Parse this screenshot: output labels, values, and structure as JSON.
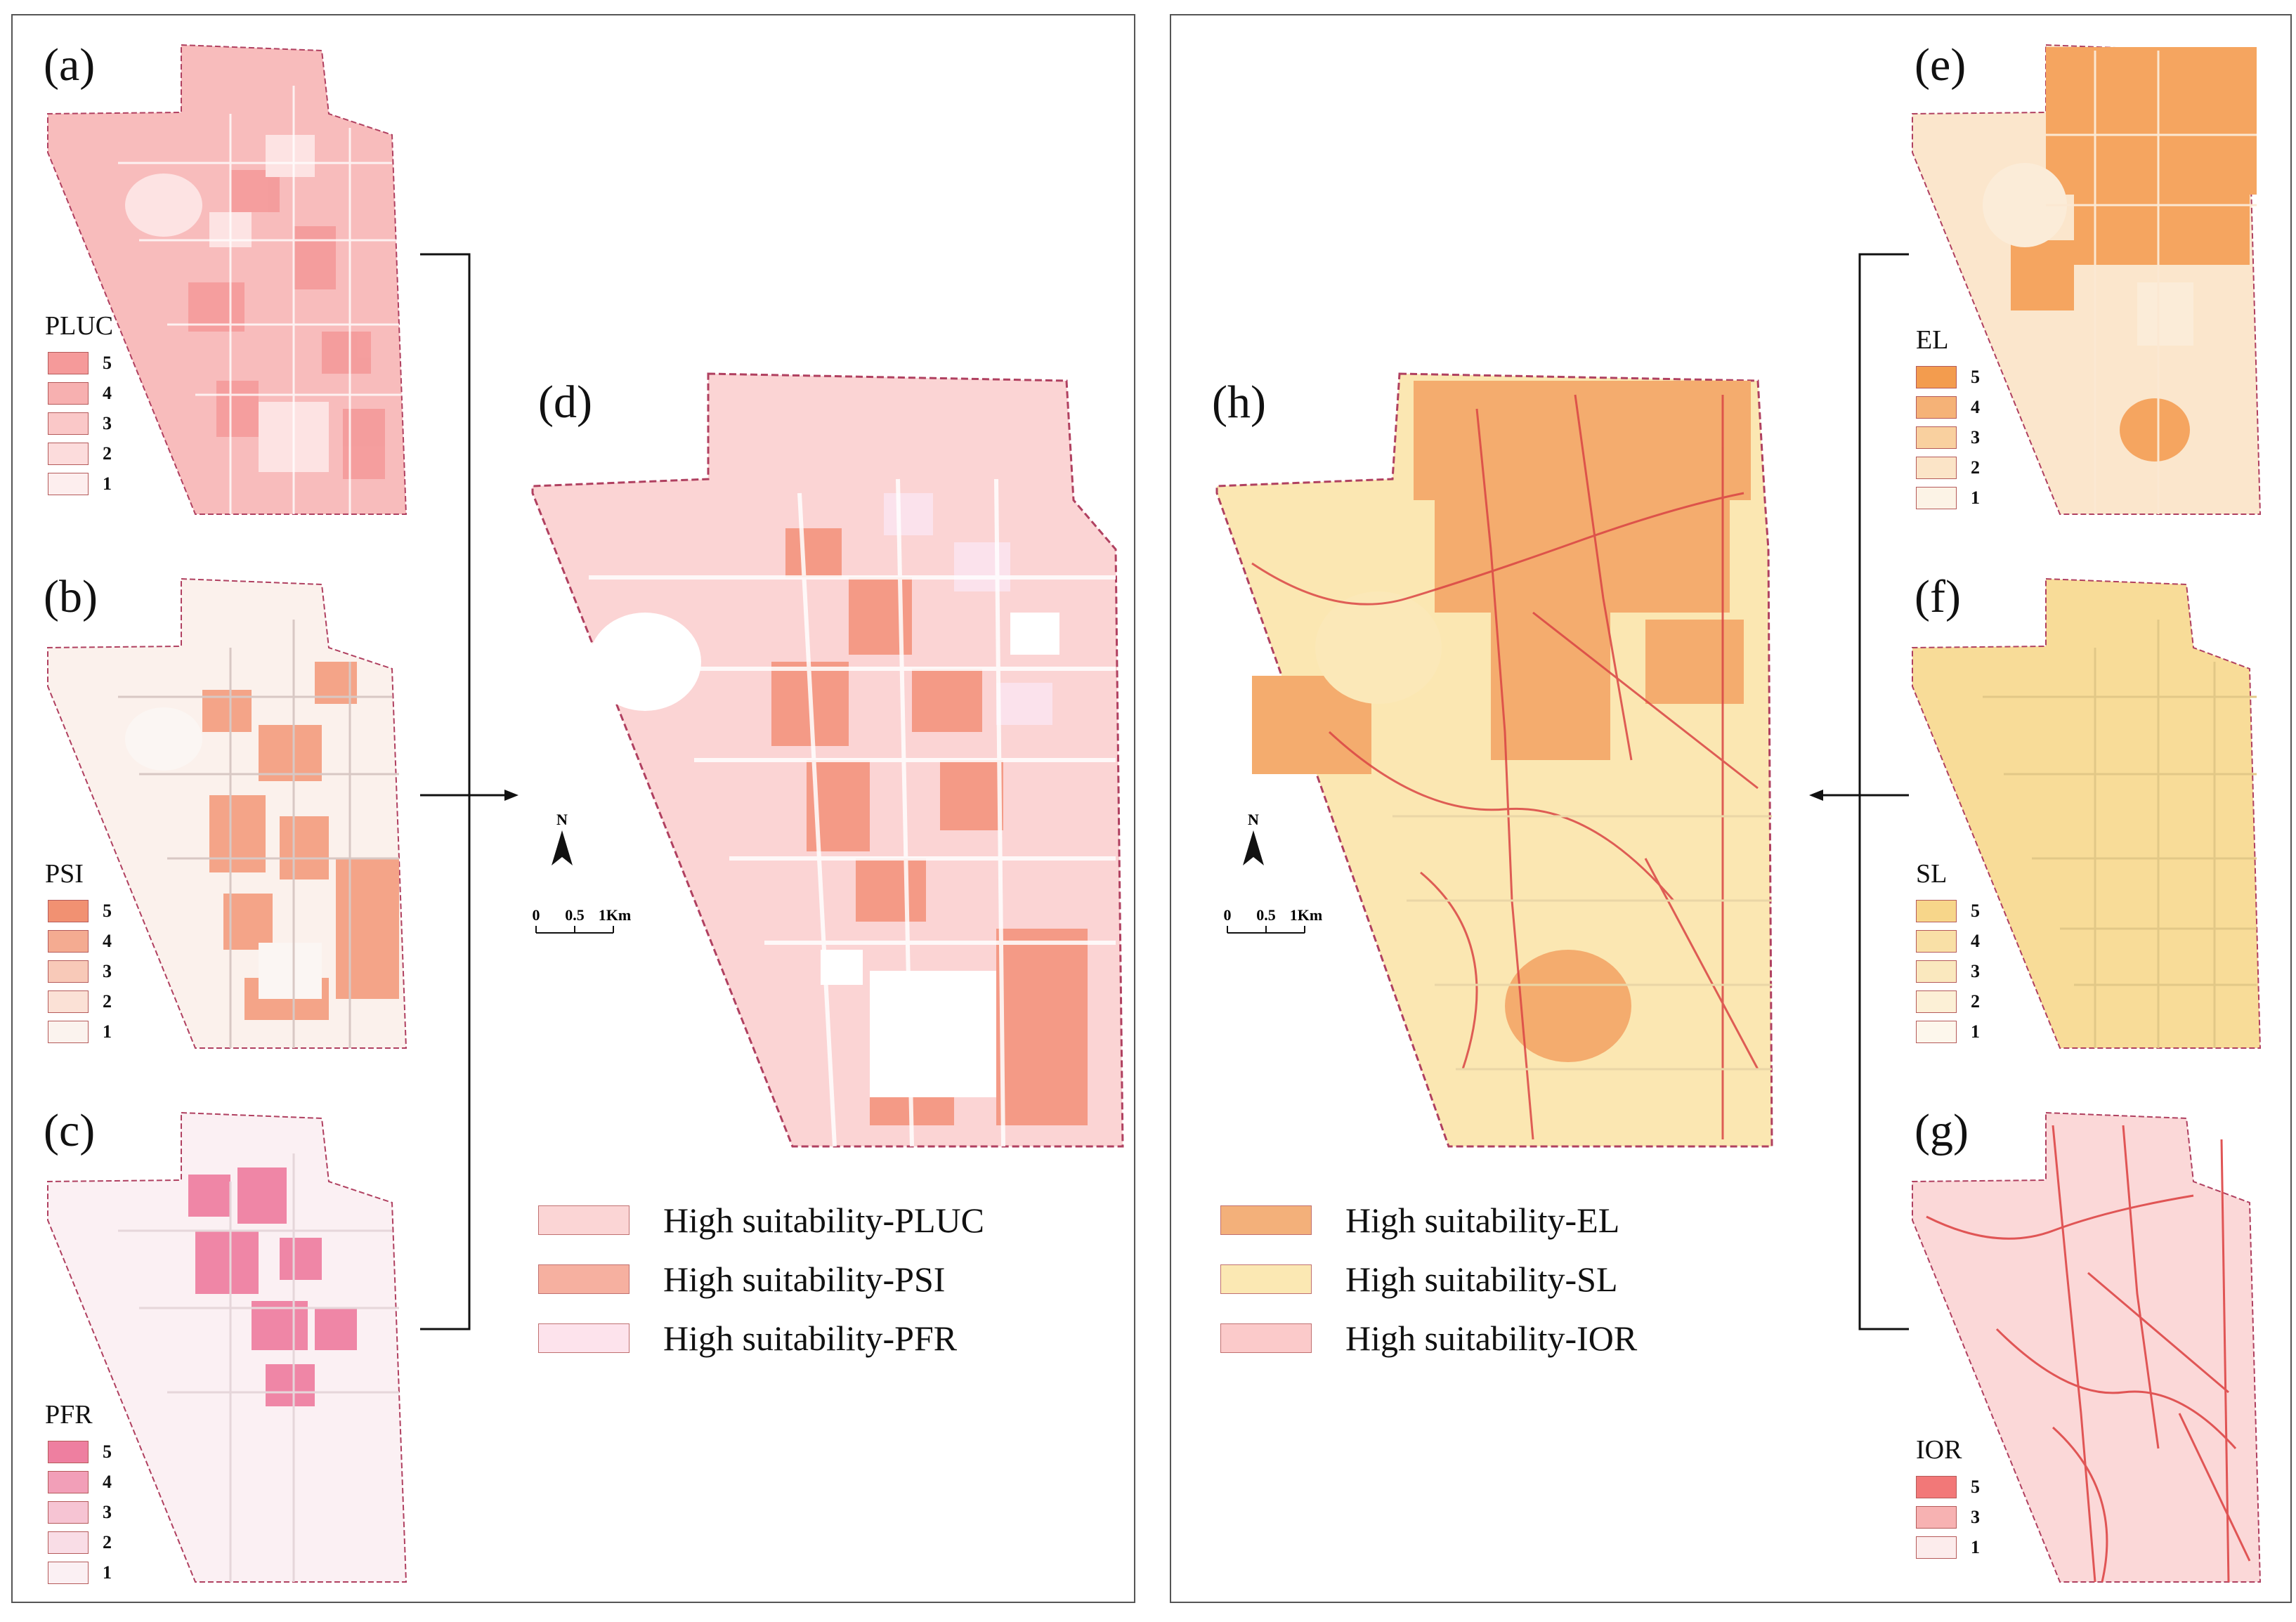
{
  "left_group": {
    "maps": [
      {
        "id": "a",
        "label": "(a)",
        "legend_title": "PLUC",
        "classes": [
          "5",
          "4",
          "3",
          "2",
          "1"
        ],
        "base_color": "#f7b3b3"
      },
      {
        "id": "b",
        "label": "(b)",
        "legend_title": "PSI",
        "classes": [
          "5",
          "4",
          "3",
          "2",
          "1"
        ],
        "base_color": "#f2a283"
      },
      {
        "id": "c",
        "label": "(c)",
        "legend_title": "PFR",
        "classes": [
          "5",
          "4",
          "3",
          "2",
          "1"
        ],
        "base_color": "#f095ae"
      }
    ],
    "composite": {
      "id": "d",
      "label": "(d)"
    },
    "legend": [
      {
        "label": "High suitability-PLUC",
        "color": "#fbd5d5"
      },
      {
        "label": "High suitability-PSI",
        "color": "#f6b0a0"
      },
      {
        "label": "High suitability-PFR",
        "color": "#fde3ec"
      }
    ]
  },
  "right_group": {
    "maps": [
      {
        "id": "e",
        "label": "(e)",
        "legend_title": "EL",
        "classes": [
          "5",
          "4",
          "3",
          "2",
          "1"
        ],
        "base_color": "#f5a35f"
      },
      {
        "id": "f",
        "label": "(f)",
        "legend_title": "SL",
        "classes": [
          "5",
          "4",
          "3",
          "2",
          "1"
        ],
        "base_color": "#f8dc97"
      },
      {
        "id": "g",
        "label": "(g)",
        "legend_title": "IOR",
        "classes": [
          "5",
          "3",
          "1"
        ],
        "base_color": "#f58a8a"
      }
    ],
    "composite": {
      "id": "h",
      "label": "(h)"
    },
    "legend": [
      {
        "label": "High suitability-EL",
        "color": "#f3b07a"
      },
      {
        "label": "High suitability-SL",
        "color": "#fbe8b3"
      },
      {
        "label": "High suitability-IOR",
        "color": "#fbcaca"
      }
    ]
  },
  "north_arrow": {
    "label": "N"
  },
  "scale_bar": {
    "ticks": [
      "0",
      "0.5",
      "1Km"
    ]
  },
  "colors": {
    "pluc": [
      "#f59a9a",
      "#f7b0b0",
      "#fac8c8",
      "#fcdcdc",
      "#fdeeee"
    ],
    "psi": [
      "#f19172",
      "#f4ab91",
      "#f8c9b8",
      "#fbe1d6",
      "#fbf3ee"
    ],
    "pfr": [
      "#ee7fa0",
      "#f29fb8",
      "#f6c4d3",
      "#f9dde6",
      "#fbf0f3"
    ],
    "el": [
      "#f39c4e",
      "#f5b277",
      "#f9d09f",
      "#fbe4c7",
      "#fcf3e6"
    ],
    "sl": [
      "#f7d68a",
      "#f9e0a6",
      "#fae8be",
      "#fcf0d6",
      "#fdf7ec"
    ],
    "ior": [
      "#f27878",
      "#f7b2b2",
      "#fcecec"
    ]
  }
}
